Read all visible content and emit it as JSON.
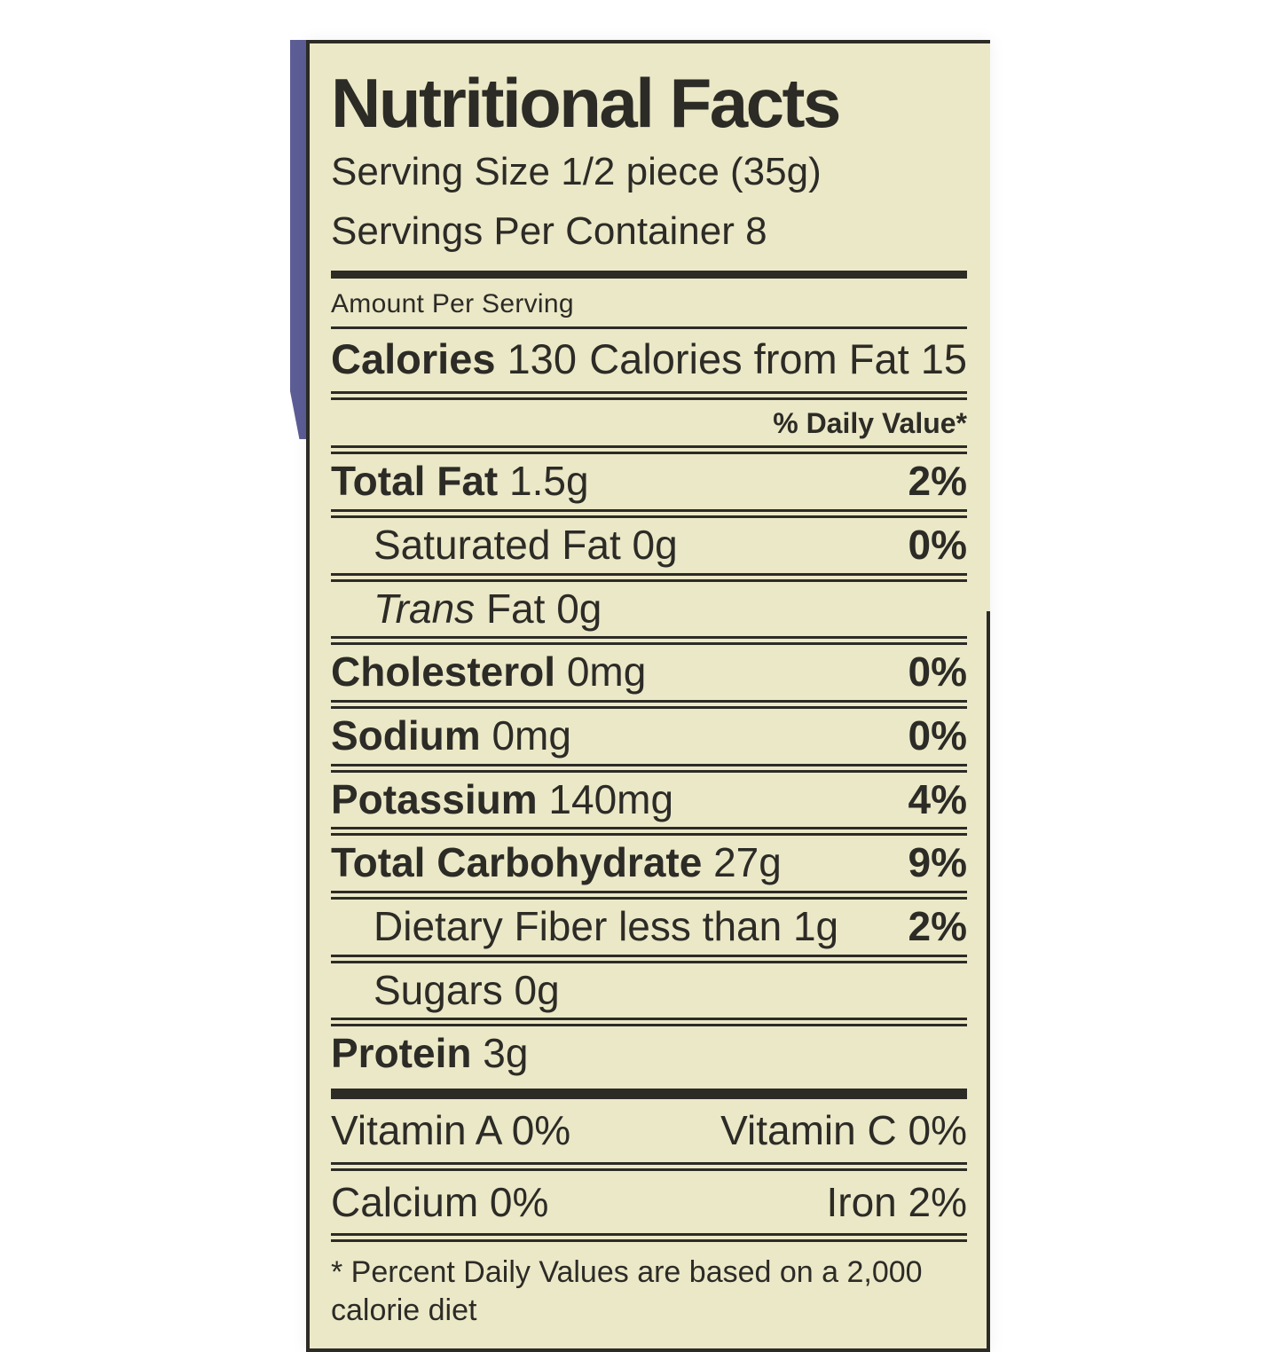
{
  "colors": {
    "label_background": "#ebe8c7",
    "ink": "#2c2b26",
    "package_accent_purple": "#5d5d96",
    "page_background": "#ffffff"
  },
  "label": {
    "title": "Nutritional Facts",
    "serving_size": "Serving Size 1/2 piece (35g)",
    "servings_per_container": "Servings Per Container 8",
    "amount_per_serving": "Amount Per Serving",
    "calories": {
      "label": "Calories",
      "value": "130",
      "from_fat": "Calories from Fat 15"
    },
    "daily_value_header": "% Daily Value*",
    "nutrients": [
      {
        "name": "Total Fat",
        "amount": "1.5g",
        "dv": "2%"
      },
      {
        "name": "Saturated Fat",
        "amount": "0g",
        "dv": "0%"
      },
      {
        "italic_prefix": "Trans",
        "name": "Fat",
        "amount": "0g",
        "dv": ""
      },
      {
        "name": "Cholesterol",
        "amount": "0mg",
        "dv": "0%"
      },
      {
        "name": "Sodium",
        "amount": "0mg",
        "dv": "0%"
      },
      {
        "name": "Potassium",
        "amount": "140mg",
        "dv": "4%"
      },
      {
        "name": "Total Carbohydrate",
        "amount": "27g",
        "dv": "9%"
      },
      {
        "name": "Dietary Fiber",
        "amount": "less than 1g",
        "dv": "2%"
      },
      {
        "name": "Sugars",
        "amount": "0g",
        "dv": ""
      },
      {
        "name": "Protein",
        "amount": "3g",
        "dv": ""
      }
    ],
    "micronutrients": [
      {
        "left": "Vitamin A 0%",
        "right": "Vitamin C 0%"
      },
      {
        "left": "Calcium 0%",
        "right": "Iron 2%"
      }
    ],
    "footnote": "* Percent Daily Values are based on a 2,000 calorie diet"
  }
}
